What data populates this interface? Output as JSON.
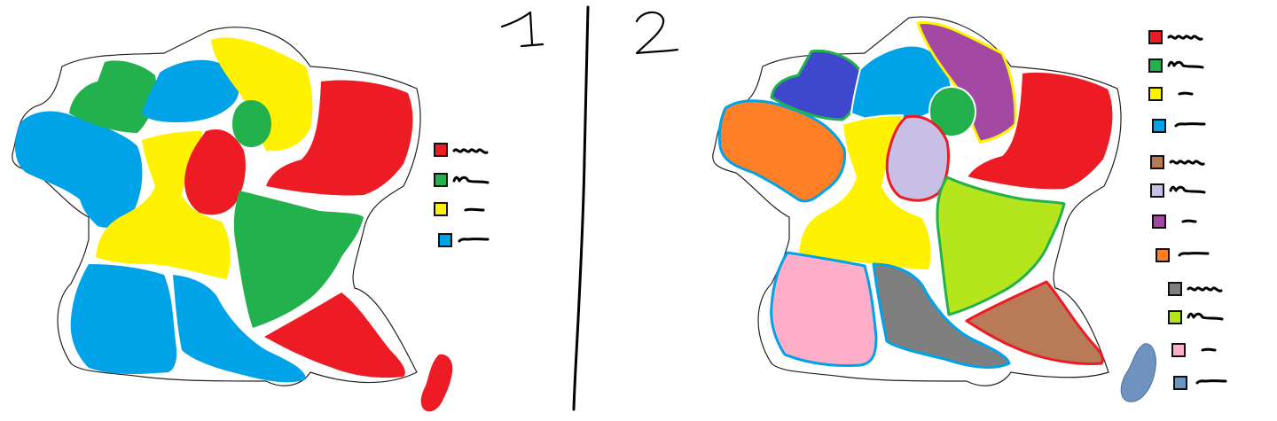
{
  "panels": [
    {
      "number": "1",
      "regions": [
        {
          "name": "brittany-region",
          "color": "#00A2E8"
        },
        {
          "name": "normandy-west-region",
          "color": "#22B14C"
        },
        {
          "name": "normandy-east-region",
          "color": "#00A2E8"
        },
        {
          "name": "north-region",
          "color": "#FFF200"
        },
        {
          "name": "paris-region",
          "color": "#22B14C"
        },
        {
          "name": "northeast-region",
          "color": "#ED1C24"
        },
        {
          "name": "center-west-region",
          "color": "#FFF200"
        },
        {
          "name": "center-region",
          "color": "#ED1C24"
        },
        {
          "name": "east-center-region",
          "color": "#22B14C"
        },
        {
          "name": "southwest-region",
          "color": "#00A2E8"
        },
        {
          "name": "south-region",
          "color": "#00A2E8"
        },
        {
          "name": "southeast-region",
          "color": "#ED1C24"
        },
        {
          "name": "corsica-region",
          "color": "#ED1C24"
        }
      ],
      "legend": [
        {
          "color": "#ED1C24"
        },
        {
          "color": "#22B14C"
        },
        {
          "color": "#FFF200"
        },
        {
          "color": "#00A2E8"
        }
      ]
    },
    {
      "number": "2",
      "regions": [
        {
          "name": "brittany-region",
          "color": "#FF7F27"
        },
        {
          "name": "normandy-west-region",
          "color": "#3F48CC"
        },
        {
          "name": "normandy-east-region",
          "color": "#00A2E8"
        },
        {
          "name": "north-region",
          "color": "#A349A4"
        },
        {
          "name": "paris-region",
          "color": "#22B14C"
        },
        {
          "name": "northeast-region",
          "color": "#ED1C24"
        },
        {
          "name": "center-west-region",
          "color": "#FFF200"
        },
        {
          "name": "center-region",
          "color": "#C8BFE7"
        },
        {
          "name": "east-center-region",
          "color": "#B5E61D"
        },
        {
          "name": "southwest-region",
          "color": "#FFAEC9"
        },
        {
          "name": "south-region",
          "color": "#7F7F7F"
        },
        {
          "name": "southeast-region",
          "color": "#B97A57"
        },
        {
          "name": "corsica-region",
          "color": "#7092BE"
        }
      ],
      "legend": [
        {
          "color": "#ED1C24"
        },
        {
          "color": "#22B14C"
        },
        {
          "color": "#FFF200"
        },
        {
          "color": "#00A2E8"
        },
        {
          "color": "#B97A57"
        },
        {
          "color": "#C8BFE7"
        },
        {
          "color": "#A349A4"
        },
        {
          "color": "#FF7F27"
        },
        {
          "color": "#7F7F7F"
        },
        {
          "color": "#B5E61D"
        },
        {
          "color": "#FFAEC9"
        },
        {
          "color": "#7092BE"
        }
      ]
    }
  ]
}
